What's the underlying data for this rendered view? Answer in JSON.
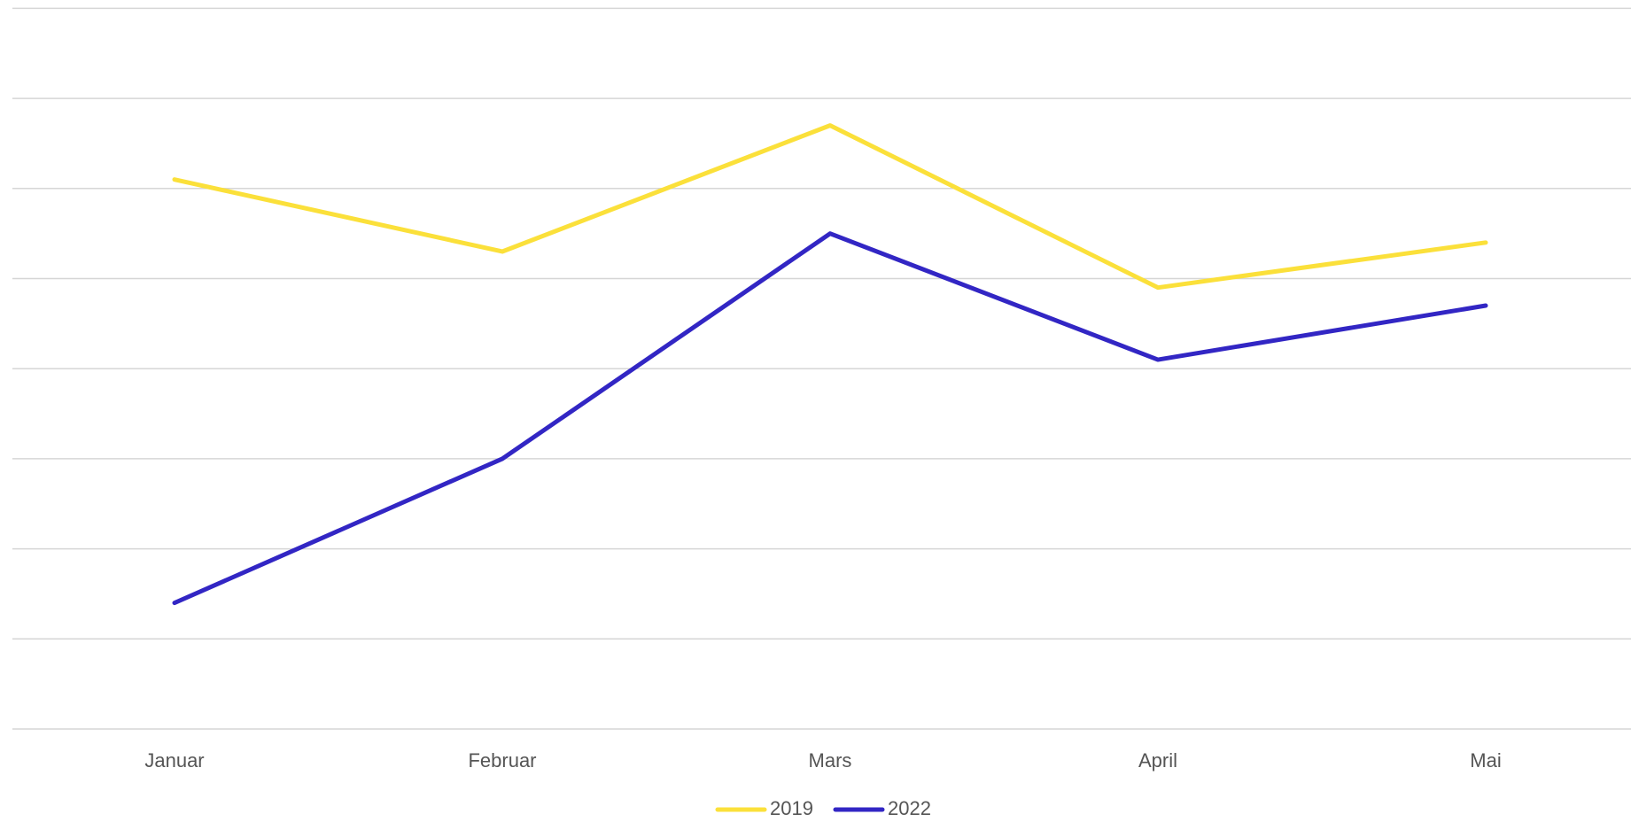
{
  "chart_data": {
    "type": "line",
    "categories": [
      "Januar",
      "Februar",
      "Mars",
      "April",
      "Mai"
    ],
    "series": [
      {
        "name": "2019",
        "color": "#fbe03a",
        "values": [
          6.1,
          5.3,
          6.7,
          4.9,
          5.4
        ]
      },
      {
        "name": "2022",
        "color": "#3226c4",
        "values": [
          1.4,
          3.0,
          5.5,
          4.1,
          4.7
        ]
      }
    ],
    "ylim": [
      0,
      8
    ],
    "yticks": [
      0,
      1,
      2,
      3,
      4,
      5,
      6,
      7,
      8
    ],
    "grid": true,
    "legend": "bottom"
  }
}
